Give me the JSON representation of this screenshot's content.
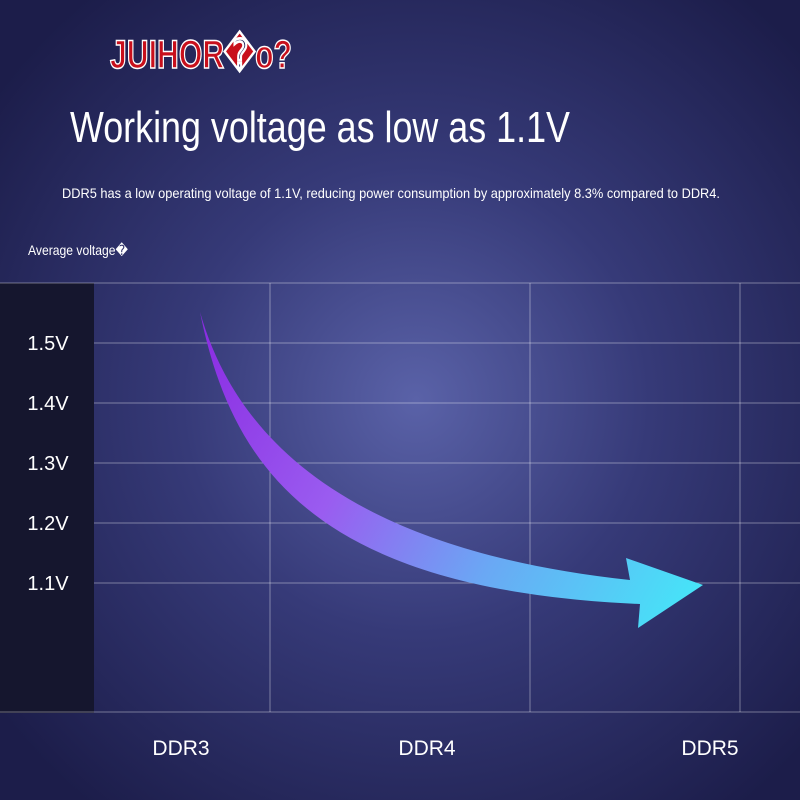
{
  "brand": "JUIHOR�o?",
  "title": "Working voltage as low as 1.1V",
  "subtitle": "DDR5 has a low operating voltage of 1.1V, reducing power consumption by approximately 8.3% compared to DDR4.",
  "axis_label": "Average voltage�",
  "y_labels": [
    "1.5V",
    "1.4V",
    "1.3V",
    "1.2V",
    "1.1V"
  ],
  "x_labels": [
    "DDR3",
    "DDR4",
    "DDR5"
  ]
}
